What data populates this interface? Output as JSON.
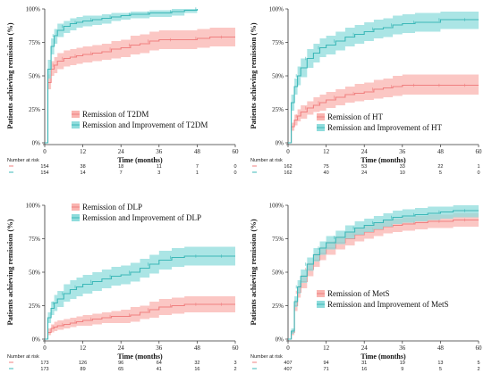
{
  "chart_data": [
    {
      "type": "line",
      "subtype": "kaplan-meier-cumulative-incidence",
      "ylabel": "Patients achieving remission (%)",
      "xlabel": "Time (months)",
      "xlim": [
        0,
        60
      ],
      "ylim": [
        0,
        100
      ],
      "x_ticks": [
        "0",
        "12",
        "24",
        "36",
        "48",
        "60"
      ],
      "y_ticks": [
        "0%",
        "25%",
        "50%",
        "75%",
        "100%"
      ],
      "legend_position": "bottom-right",
      "series": [
        {
          "name": "Remission of T2DM",
          "color": "#f08080",
          "band_color": "#f9b4b0",
          "x": [
            0,
            1,
            2,
            3,
            4,
            6,
            8,
            10,
            12,
            15,
            18,
            21,
            24,
            27,
            30,
            33,
            36,
            40,
            44,
            48,
            52,
            56,
            60
          ],
          "y": [
            0,
            45,
            55,
            58,
            61,
            63,
            64,
            65,
            66,
            67,
            68,
            70,
            71,
            73,
            74,
            76,
            77,
            77,
            77,
            78,
            79,
            79,
            79
          ],
          "lower": [
            0,
            40,
            50,
            52,
            55,
            57,
            58,
            59,
            60,
            61,
            62,
            63,
            64,
            66,
            67,
            69,
            70,
            70,
            70,
            71,
            72,
            72,
            72
          ],
          "upper": [
            0,
            51,
            61,
            64,
            67,
            69,
            70,
            71,
            72,
            73,
            74,
            76,
            77,
            80,
            81,
            83,
            84,
            84,
            84,
            85,
            86,
            86,
            86
          ]
        },
        {
          "name": "Remission and Improvement of T2DM",
          "color": "#3cb8b8",
          "band_color": "#8fdcdc",
          "x": [
            0,
            1,
            2,
            3,
            4,
            6,
            8,
            10,
            12,
            15,
            18,
            21,
            24,
            27,
            30,
            33,
            36,
            40,
            44,
            48
          ],
          "y": [
            0,
            55,
            72,
            80,
            84,
            87,
            89,
            90,
            91,
            92,
            93,
            94,
            95,
            96,
            96,
            97,
            97,
            98,
            99,
            100
          ],
          "lower": [
            0,
            48,
            66,
            74,
            79,
            82,
            84,
            86,
            87,
            88,
            89,
            91,
            92,
            93,
            93,
            94,
            94,
            95,
            97,
            98
          ],
          "upper": [
            0,
            62,
            78,
            85,
            89,
            91,
            93,
            94,
            95,
            95,
            96,
            97,
            97,
            98,
            98,
            99,
            99,
            100,
            100,
            100
          ]
        }
      ],
      "risk_table": {
        "title": "Number at risk",
        "x": [
          0,
          12,
          24,
          36,
          48,
          60
        ],
        "rows": [
          {
            "values": [
              "154",
              "38",
              "18",
              "11",
              "7",
              "0"
            ]
          },
          {
            "values": [
              "154",
              "14",
              "7",
              "3",
              "1",
              "0"
            ]
          }
        ]
      }
    },
    {
      "type": "line",
      "subtype": "kaplan-meier-cumulative-incidence",
      "ylabel": "Patients achieving remission (%)",
      "xlabel": "Time (months)",
      "xlim": [
        0,
        60
      ],
      "ylim": [
        0,
        100
      ],
      "x_ticks": [
        "0",
        "12",
        "24",
        "36",
        "48",
        "60"
      ],
      "y_ticks": [
        "0%",
        "25%",
        "50%",
        "75%",
        "100%"
      ],
      "legend_position": "bottom-right",
      "series": [
        {
          "name": "Remission of HT",
          "color": "#f08080",
          "band_color": "#f9b4b0",
          "x": [
            0,
            1,
            2,
            3,
            4,
            6,
            8,
            10,
            12,
            15,
            18,
            21,
            24,
            27,
            30,
            33,
            36,
            40,
            44,
            48,
            52,
            56,
            60
          ],
          "y": [
            0,
            12,
            17,
            20,
            23,
            26,
            28,
            30,
            32,
            34,
            36,
            37,
            38,
            40,
            41,
            42,
            43,
            43,
            43,
            43,
            43,
            43,
            43
          ],
          "lower": [
            0,
            9,
            13,
            16,
            18,
            21,
            23,
            24,
            26,
            28,
            30,
            31,
            32,
            33,
            34,
            35,
            36,
            36,
            36,
            36,
            36,
            36,
            36
          ],
          "upper": [
            0,
            15,
            21,
            25,
            28,
            31,
            34,
            36,
            38,
            40,
            42,
            44,
            45,
            47,
            48,
            50,
            51,
            51,
            51,
            51,
            51,
            51,
            51
          ]
        },
        {
          "name": "Remission and Improvement of HT",
          "color": "#3cb8b8",
          "band_color": "#8fdcdc",
          "x": [
            0,
            1,
            2,
            3,
            4,
            6,
            8,
            10,
            12,
            15,
            18,
            21,
            24,
            27,
            30,
            33,
            36,
            40,
            44,
            48,
            52,
            56,
            60
          ],
          "y": [
            0,
            30,
            42,
            50,
            56,
            63,
            67,
            71,
            73,
            76,
            79,
            81,
            83,
            85,
            86,
            88,
            89,
            90,
            90,
            92,
            92,
            92,
            92
          ],
          "lower": [
            0,
            24,
            36,
            43,
            49,
            56,
            60,
            64,
            66,
            69,
            72,
            74,
            76,
            78,
            79,
            81,
            82,
            83,
            83,
            85,
            85,
            85,
            85
          ],
          "upper": [
            0,
            36,
            48,
            57,
            63,
            70,
            74,
            78,
            80,
            83,
            86,
            88,
            90,
            92,
            93,
            95,
            96,
            97,
            97,
            98,
            98,
            98,
            98
          ]
        }
      ],
      "risk_table": {
        "title": "Number at risk",
        "x": [
          0,
          12,
          24,
          36,
          48,
          60
        ],
        "rows": [
          {
            "values": [
              "162",
              "75",
              "53",
              "33",
              "22",
              "1"
            ]
          },
          {
            "values": [
              "162",
              "40",
              "24",
              "10",
              "5",
              "0"
            ]
          }
        ]
      }
    },
    {
      "type": "line",
      "subtype": "kaplan-meier-cumulative-incidence",
      "ylabel": "Patients achieving remission (%)",
      "xlabel": "Time (months)",
      "xlim": [
        0,
        60
      ],
      "ylim": [
        0,
        100
      ],
      "x_ticks": [
        "0",
        "12",
        "24",
        "36",
        "48",
        "60"
      ],
      "y_ticks": [
        "0%",
        "25%",
        "50%",
        "75%",
        "100%"
      ],
      "legend_position": "top-left",
      "series": [
        {
          "name": "Remission of DLP",
          "color": "#f08080",
          "band_color": "#f9b4b0",
          "x": [
            0,
            1,
            2,
            3,
            4,
            6,
            8,
            10,
            12,
            15,
            18,
            21,
            24,
            27,
            30,
            33,
            36,
            40,
            44,
            48,
            52,
            56,
            60
          ],
          "y": [
            0,
            5,
            8,
            9,
            10,
            11,
            12,
            13,
            14,
            15,
            16,
            17,
            17,
            18,
            20,
            22,
            24,
            25,
            26,
            26,
            26,
            26,
            26
          ],
          "lower": [
            0,
            3,
            5,
            6,
            7,
            8,
            9,
            10,
            10,
            11,
            12,
            12,
            12,
            13,
            15,
            16,
            18,
            19,
            20,
            20,
            20,
            20,
            20
          ],
          "upper": [
            0,
            8,
            11,
            13,
            14,
            15,
            16,
            17,
            18,
            19,
            20,
            21,
            22,
            24,
            25,
            28,
            30,
            31,
            32,
            32,
            32,
            32,
            32
          ]
        },
        {
          "name": "Remission and Improvement of DLP",
          "color": "#3cb8b8",
          "band_color": "#8fdcdc",
          "x": [
            0,
            1,
            2,
            3,
            4,
            6,
            8,
            10,
            12,
            15,
            18,
            21,
            24,
            27,
            30,
            33,
            36,
            40,
            44,
            48,
            52,
            56,
            60
          ],
          "y": [
            0,
            16,
            23,
            27,
            30,
            34,
            37,
            39,
            41,
            43,
            45,
            47,
            48,
            50,
            53,
            56,
            59,
            61,
            62,
            62,
            62,
            62,
            62
          ],
          "lower": [
            0,
            12,
            18,
            21,
            24,
            28,
            30,
            32,
            34,
            36,
            38,
            40,
            41,
            43,
            46,
            49,
            52,
            54,
            55,
            55,
            55,
            55,
            55
          ],
          "upper": [
            0,
            20,
            28,
            33,
            36,
            41,
            44,
            46,
            48,
            50,
            52,
            54,
            55,
            57,
            60,
            63,
            66,
            68,
            69,
            69,
            69,
            69,
            69
          ]
        }
      ],
      "risk_table": {
        "title": "Number at risk",
        "x": [
          0,
          12,
          24,
          36,
          48,
          60
        ],
        "rows": [
          {
            "values": [
              "173",
              "126",
              "96",
              "64",
              "32",
              "3"
            ]
          },
          {
            "values": [
              "173",
              "89",
              "65",
              "41",
              "16",
              "2"
            ]
          }
        ]
      }
    },
    {
      "type": "line",
      "subtype": "kaplan-meier-cumulative-incidence",
      "ylabel": "Patients achieving remission (%)",
      "xlabel": "Time (months)",
      "xlim": [
        0,
        60
      ],
      "ylim": [
        0,
        100
      ],
      "x_ticks": [
        "0",
        "12",
        "24",
        "36",
        "48",
        "60"
      ],
      "y_ticks": [
        "0%",
        "25%",
        "50%",
        "75%",
        "100%"
      ],
      "legend_position": "bottom-right",
      "series": [
        {
          "name": "Remission of MetS",
          "color": "#f08080",
          "band_color": "#f9b4b0",
          "x": [
            0,
            1,
            2,
            3,
            4,
            6,
            8,
            10,
            12,
            15,
            18,
            21,
            24,
            27,
            30,
            33,
            36,
            40,
            44,
            48,
            52,
            56,
            60
          ],
          "y": [
            0,
            5,
            25,
            35,
            43,
            52,
            59,
            64,
            68,
            72,
            75,
            78,
            80,
            82,
            84,
            85,
            86,
            87,
            88,
            88,
            89,
            89,
            89
          ],
          "lower": [
            0,
            3,
            21,
            31,
            38,
            47,
            54,
            59,
            63,
            67,
            70,
            73,
            75,
            77,
            79,
            80,
            81,
            82,
            83,
            83,
            84,
            84,
            84
          ],
          "upper": [
            0,
            7,
            29,
            40,
            48,
            57,
            64,
            69,
            73,
            77,
            80,
            83,
            85,
            87,
            89,
            90,
            91,
            92,
            93,
            93,
            94,
            94,
            94
          ]
        },
        {
          "name": "Remission and Improvement of MetS",
          "color": "#3cb8b8",
          "band_color": "#8fdcdc",
          "x": [
            0,
            1,
            2,
            3,
            4,
            6,
            8,
            10,
            12,
            15,
            18,
            21,
            24,
            27,
            30,
            33,
            36,
            40,
            44,
            48,
            52,
            56,
            60
          ],
          "y": [
            0,
            6,
            28,
            39,
            47,
            56,
            63,
            68,
            72,
            76,
            80,
            83,
            85,
            87,
            89,
            91,
            92,
            93,
            94,
            95,
            96,
            96,
            96
          ],
          "lower": [
            0,
            4,
            24,
            34,
            42,
            51,
            58,
            63,
            67,
            71,
            75,
            78,
            80,
            82,
            84,
            86,
            87,
            88,
            89,
            90,
            91,
            91,
            91
          ],
          "upper": [
            0,
            8,
            32,
            44,
            52,
            61,
            68,
            73,
            77,
            81,
            85,
            88,
            90,
            92,
            94,
            96,
            97,
            98,
            99,
            99,
            100,
            100,
            100
          ]
        }
      ],
      "risk_table": {
        "title": "Number at risk",
        "x": [
          0,
          12,
          24,
          36,
          48,
          60
        ],
        "rows": [
          {
            "values": [
              "407",
              "94",
              "31",
              "19",
              "13",
              "5"
            ]
          },
          {
            "values": [
              "407",
              "71",
              "16",
              "9",
              "5",
              "2"
            ]
          }
        ]
      }
    }
  ]
}
